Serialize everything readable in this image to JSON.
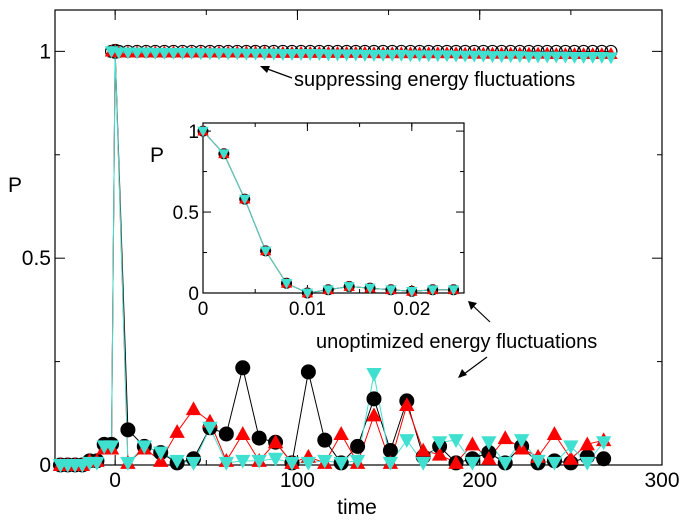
{
  "chart_data": [
    {
      "type": "line",
      "title": "",
      "xlabel": "time",
      "ylabel": "P",
      "xlim": [
        -33,
        300
      ],
      "ylim": [
        0,
        1.1
      ],
      "x_ticks": [
        "0",
        "100",
        "200",
        "300"
      ],
      "y_ticks": [
        "0",
        "0.5",
        "1"
      ],
      "grid": false,
      "annotations": [
        "suppressing energy fluctuations",
        "unoptimized energy fluctuations"
      ],
      "series": [
        {
          "color": "#000000",
          "marker": "circle",
          "optimized": false,
          "x": [
            -30,
            -26,
            -22,
            -18,
            -14,
            -10,
            -6,
            -2,
            0,
            7,
            16,
            25,
            34,
            43,
            52,
            61,
            70,
            79,
            88,
            97,
            106,
            115,
            124,
            133,
            142,
            151,
            160,
            169,
            178,
            187,
            196,
            205,
            214,
            223,
            232,
            241,
            250,
            259,
            268
          ],
          "y": [
            0,
            0,
            0,
            0,
            0.01,
            0.01,
            0.05,
            0.05,
            1,
            0.085,
            0.045,
            0.03,
            0.005,
            0.015,
            0.09,
            0.075,
            0.235,
            0.065,
            0.055,
            0.005,
            0.225,
            0.06,
            0.005,
            0.045,
            0.16,
            0.035,
            0.155,
            0.02,
            0.045,
            0.005,
            0.015,
            0.03,
            0.005,
            0.045,
            0.005,
            0.01,
            0.005,
            0.02,
            0.015
          ]
        },
        {
          "color": "#ff0000",
          "marker": "triangle-up",
          "optimized": false,
          "x": [
            -30,
            -26,
            -22,
            -18,
            -14,
            -10,
            -6,
            -2,
            0,
            7,
            16,
            25,
            34,
            43,
            52,
            61,
            70,
            79,
            88,
            97,
            106,
            115,
            124,
            133,
            142,
            151,
            160,
            169,
            178,
            187,
            196,
            205,
            214,
            223,
            232,
            241,
            250,
            259,
            268
          ],
          "y": [
            0,
            0,
            0,
            0,
            0.01,
            0.01,
            0.04,
            0.04,
            1,
            0.005,
            0.04,
            0.01,
            0.08,
            0.135,
            0.105,
            0.01,
            0.075,
            0.01,
            0.055,
            0.005,
            0.02,
            0.005,
            0.075,
            0.005,
            0.12,
            0.005,
            0.145,
            0.035,
            0.025,
            0.005,
            0.05,
            0.015,
            0.065,
            0.04,
            0.02,
            0.075,
            0.015,
            0.05,
            0.06
          ]
        },
        {
          "color": "#40e0d0",
          "marker": "triangle-down",
          "optimized": false,
          "x": [
            -30,
            -26,
            -22,
            -18,
            -14,
            -10,
            -6,
            -2,
            0,
            7,
            16,
            25,
            34,
            43,
            52,
            61,
            70,
            79,
            88,
            97,
            106,
            115,
            124,
            133,
            142,
            151,
            160,
            169,
            178,
            187,
            196,
            205,
            214,
            223,
            232,
            241,
            250,
            259,
            268
          ],
          "y": [
            0,
            0,
            0,
            0,
            0.005,
            0.005,
            0.045,
            0.045,
            1,
            0.005,
            0.045,
            0.03,
            0.01,
            0.005,
            0.09,
            0.005,
            0.01,
            0.01,
            0.015,
            0.005,
            0.005,
            0.01,
            0.005,
            0.01,
            0.22,
            0.005,
            0.06,
            0.005,
            0.055,
            0.06,
            0.005,
            0.055,
            0.005,
            0.06,
            0.01,
            0.005,
            0.045,
            0.005,
            0.055
          ]
        },
        {
          "color": "#000000",
          "marker": "circle-open",
          "optimized": true,
          "x": [
            -2,
            2,
            7,
            12,
            17,
            22,
            27,
            32,
            37,
            42,
            47,
            52,
            57,
            62,
            67,
            72,
            77,
            82,
            87,
            92,
            97,
            102,
            107,
            112,
            117,
            122,
            127,
            132,
            137,
            142,
            147,
            152,
            157,
            162,
            167,
            172,
            177,
            182,
            187,
            192,
            197,
            202,
            207,
            212,
            217,
            222,
            227,
            232,
            237,
            242,
            247,
            252,
            257,
            262,
            267,
            272
          ],
          "y": [
            1,
            1,
            1,
            1,
            1,
            1,
            1,
            1,
            1,
            1,
            1,
            1,
            1,
            1,
            1,
            1,
            1,
            1,
            1,
            1,
            1,
            1,
            1,
            1,
            1,
            1,
            1,
            1,
            1,
            1,
            1,
            1,
            1,
            1,
            1,
            1,
            1,
            1,
            1,
            1,
            1,
            1,
            1,
            1,
            1,
            1,
            1,
            1,
            1,
            1,
            1,
            1,
            1,
            1,
            1,
            1
          ]
        },
        {
          "color": "#ff0000",
          "marker": "triangle-up",
          "optimized": true,
          "x": [
            -2,
            2,
            7,
            12,
            17,
            22,
            27,
            32,
            37,
            42,
            47,
            52,
            57,
            62,
            67,
            72,
            77,
            82,
            87,
            92,
            97,
            102,
            107,
            112,
            117,
            122,
            127,
            132,
            137,
            142,
            147,
            152,
            157,
            162,
            167,
            172,
            177,
            182,
            187,
            192,
            197,
            202,
            207,
            212,
            217,
            222,
            227,
            232,
            237,
            242,
            247,
            252,
            257,
            262,
            267,
            272
          ],
          "y": [
            1,
            0.998,
            0.998,
            0.998,
            0.998,
            0.998,
            0.998,
            0.998,
            0.998,
            0.998,
            0.998,
            0.998,
            0.998,
            0.998,
            0.998,
            0.998,
            0.998,
            0.998,
            0.997,
            0.997,
            0.997,
            0.997,
            0.997,
            0.997,
            0.997,
            0.997,
            0.997,
            0.997,
            0.997,
            0.996,
            0.996,
            0.996,
            0.996,
            0.996,
            0.996,
            0.996,
            0.996,
            0.996,
            0.996,
            0.995,
            0.995,
            0.995,
            0.995,
            0.995,
            0.995,
            0.995,
            0.995,
            0.995,
            0.995,
            0.994,
            0.994,
            0.994,
            0.994,
            0.994,
            0.994,
            0.994
          ]
        },
        {
          "color": "#40e0d0",
          "marker": "triangle-down",
          "optimized": true,
          "x": [
            -2,
            2,
            7,
            12,
            17,
            22,
            27,
            32,
            37,
            42,
            47,
            52,
            57,
            62,
            67,
            72,
            77,
            82,
            87,
            92,
            97,
            102,
            107,
            112,
            117,
            122,
            127,
            132,
            137,
            142,
            147,
            152,
            157,
            162,
            167,
            172,
            177,
            182,
            187,
            192,
            197,
            202,
            207,
            212,
            217,
            222,
            227,
            232,
            237,
            242,
            247,
            252,
            257,
            262,
            267,
            272
          ],
          "y": [
            1,
            0.997,
            0.997,
            0.997,
            0.997,
            0.996,
            0.996,
            0.996,
            0.996,
            0.996,
            0.995,
            0.995,
            0.995,
            0.995,
            0.995,
            0.994,
            0.994,
            0.994,
            0.994,
            0.993,
            0.993,
            0.993,
            0.993,
            0.993,
            0.992,
            0.992,
            0.992,
            0.992,
            0.991,
            0.991,
            0.991,
            0.991,
            0.991,
            0.99,
            0.99,
            0.99,
            0.99,
            0.99,
            0.989,
            0.989,
            0.989,
            0.989,
            0.988,
            0.988,
            0.988,
            0.988,
            0.987,
            0.987,
            0.987,
            0.987,
            0.987,
            0.986,
            0.986,
            0.986,
            0.986,
            0.985
          ]
        }
      ]
    },
    {
      "type": "line",
      "title": "",
      "xlabel": "",
      "ylabel": "P",
      "xlim": [
        0,
        0.025
      ],
      "ylim": [
        0,
        1.05
      ],
      "x_ticks": [
        "0",
        "0.01",
        "0.02"
      ],
      "y_ticks": [
        "0",
        "0.5",
        "1"
      ],
      "grid": false,
      "series": [
        {
          "color": "#000000",
          "marker": "circle",
          "x": [
            0,
            0.002,
            0.004,
            0.006,
            0.008,
            0.01,
            0.012,
            0.014,
            0.016,
            0.018,
            0.02,
            0.022,
            0.024
          ],
          "y": [
            1,
            0.86,
            0.58,
            0.26,
            0.06,
            0.0,
            0.02,
            0.04,
            0.03,
            0.02,
            0.01,
            0.02,
            0.02
          ]
        },
        {
          "color": "#ff0000",
          "marker": "triangle-up",
          "x": [
            0,
            0.002,
            0.004,
            0.006,
            0.008,
            0.01,
            0.012,
            0.014,
            0.016,
            0.018,
            0.02,
            0.022,
            0.024
          ],
          "y": [
            1,
            0.86,
            0.58,
            0.26,
            0.06,
            0.0,
            0.02,
            0.04,
            0.03,
            0.02,
            0.01,
            0.02,
            0.02
          ]
        },
        {
          "color": "#40e0d0",
          "marker": "triangle-down",
          "x": [
            0,
            0.002,
            0.004,
            0.006,
            0.008,
            0.01,
            0.012,
            0.014,
            0.016,
            0.018,
            0.02,
            0.022,
            0.024
          ],
          "y": [
            1,
            0.86,
            0.58,
            0.26,
            0.06,
            0.0,
            0.02,
            0.04,
            0.03,
            0.02,
            0.01,
            0.02,
            0.02
          ]
        }
      ]
    }
  ]
}
